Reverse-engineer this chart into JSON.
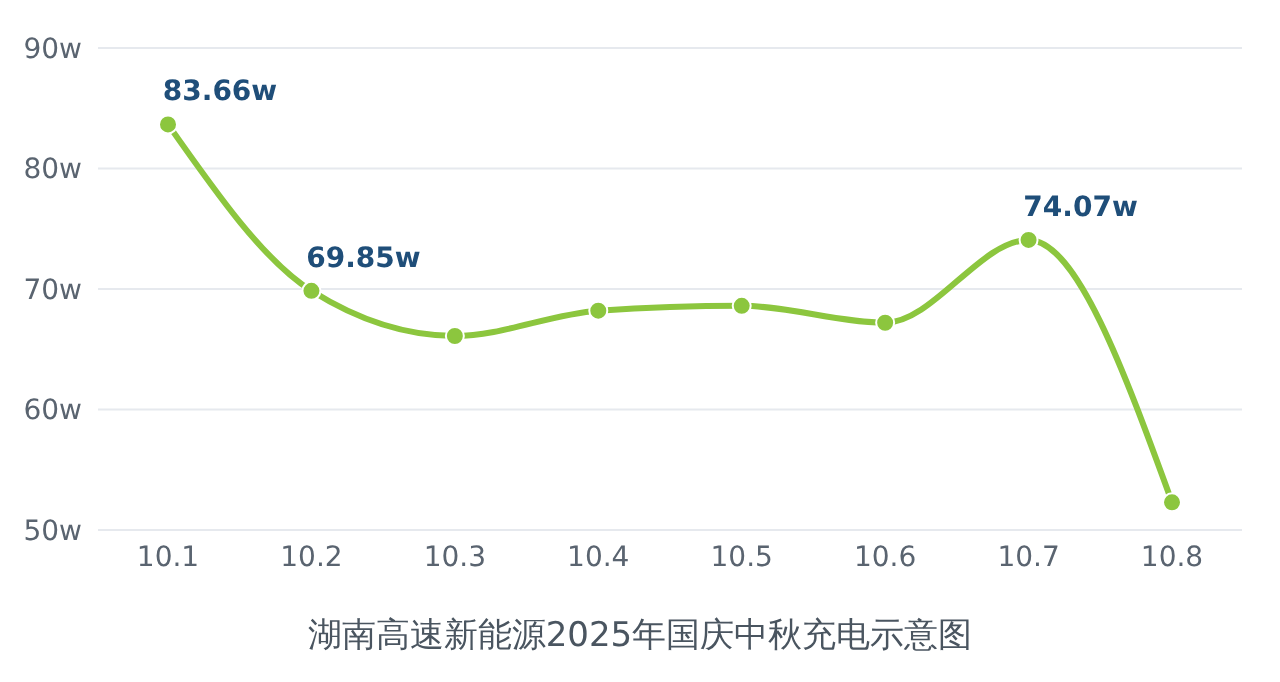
{
  "chart_data": {
    "type": "line",
    "title": "湖南高速新能源2025年国庆中秋充电示意图",
    "categories": [
      "10.1",
      "10.2",
      "10.3",
      "10.4",
      "10.5",
      "10.6",
      "10.7",
      "10.8"
    ],
    "series": [
      {
        "color": "#8cc63e",
        "values": [
          83.66,
          69.85,
          66.1,
          68.2,
          68.6,
          67.2,
          74.07,
          52.3
        ],
        "value_labels": [
          "83.66w",
          "69.85w",
          null,
          null,
          null,
          null,
          "74.07w",
          null
        ]
      }
    ],
    "ylim": [
      50,
      90
    ],
    "yticks": [
      {
        "value": 50,
        "label": "50w"
      },
      {
        "value": 60,
        "label": "60w"
      },
      {
        "value": 70,
        "label": "70w"
      },
      {
        "value": 80,
        "label": "80w"
      },
      {
        "value": 90,
        "label": "90w"
      }
    ],
    "grid": "y",
    "marker": "circle",
    "line_style": "solid"
  }
}
